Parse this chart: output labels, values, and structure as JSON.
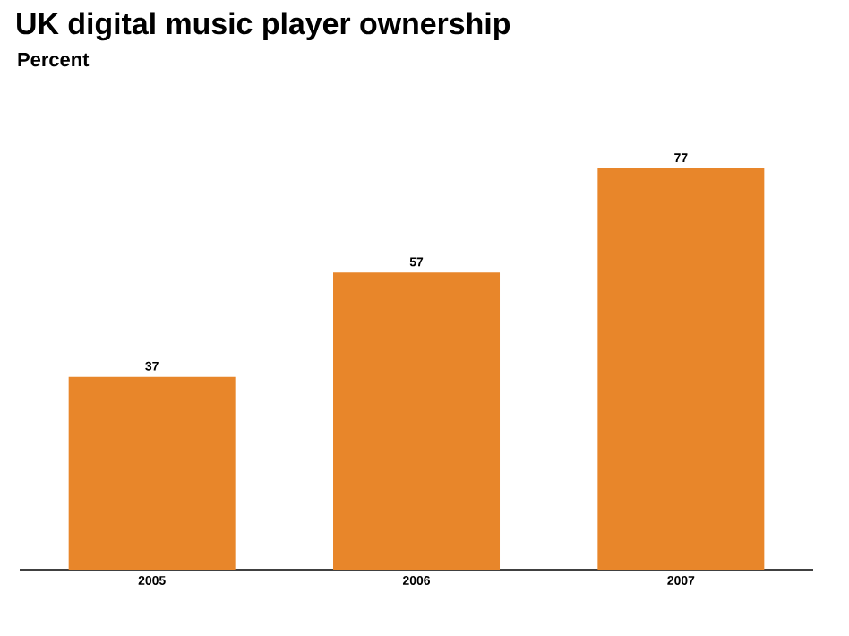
{
  "chart_data": {
    "type": "bar",
    "title": "UK digital music player ownership",
    "subtitle": "Percent",
    "categories": [
      "2005",
      "2006",
      "2007"
    ],
    "values": [
      37,
      57,
      77
    ],
    "color": "#e8862a",
    "data_labels": true
  }
}
